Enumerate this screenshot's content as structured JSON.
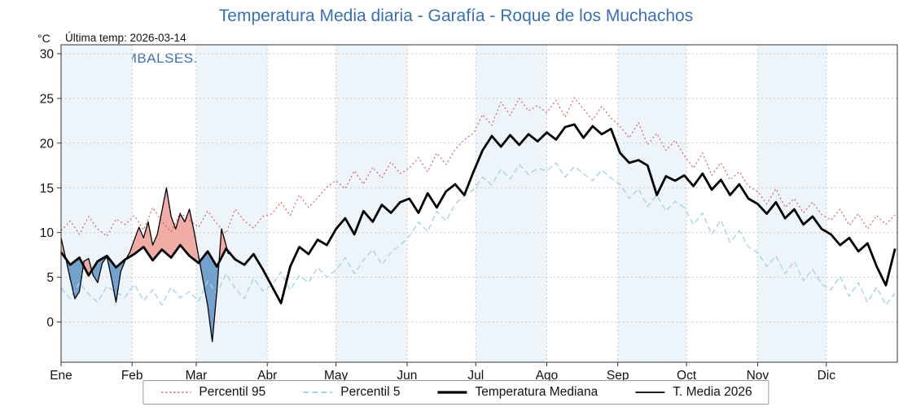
{
  "chart_data": {
    "type": "line",
    "title": "Temperatura Media diaria - Garafía - Roque de los Muchachos",
    "watermark": "WWW.EMBALSES.NET",
    "annotation": "Última temp: 2026-03-14",
    "ylabel": "°C",
    "legend": [
      "Percentil 95",
      "Percentil 5",
      "Temperatura Mediana",
      "T. Media 2026"
    ],
    "y_axis": {
      "ticks": [
        0,
        5,
        10,
        15,
        20,
        25,
        30
      ],
      "plot_min": -4.5,
      "plot_max": 31
    },
    "x_axis": {
      "month_labels": [
        "Ene",
        "Feb",
        "Mar",
        "Abr",
        "May",
        "Jun",
        "Jul",
        "Ago",
        "Sep",
        "Oct",
        "Nov",
        "Dic"
      ],
      "month_start_days": [
        0,
        31,
        59,
        90,
        120,
        151,
        181,
        212,
        243,
        273,
        304,
        334
      ],
      "days_in_year": 365
    },
    "colors": {
      "title": "#3a6fb5",
      "p95": "#d9534f",
      "p5": "#a6d4e6",
      "median": "#000000",
      "t2026": "#000000",
      "fill_above": "#ef9d96",
      "fill_below": "#5e93c5",
      "month_band": "#edf4fa",
      "grid": "#c8c8c8",
      "axis": "#333333"
    },
    "series": [
      {
        "key": "p95",
        "name": "Percentil 95",
        "color": "#d9534f",
        "line": "dotted",
        "x_start": 0,
        "x_step": 4,
        "values": [
          10.2,
          11.3,
          9.8,
          11.8,
          10.4,
          9.6,
          11.5,
          10.9,
          11.9,
          10.3,
          12.8,
          11.2,
          10.1,
          12.2,
          11.4,
          10.6,
          12.4,
          11.0,
          9.9,
          12.6,
          11.3,
          10.5,
          11.8,
          12.1,
          13.4,
          11.9,
          14.2,
          12.8,
          13.9,
          15.1,
          15.8,
          14.9,
          16.9,
          15.4,
          17.3,
          16.1,
          17.9,
          16.6,
          17.2,
          18.4,
          16.8,
          18.9,
          17.6,
          19.3,
          20.4,
          21.1,
          23.2,
          22.0,
          24.6,
          23.1,
          25.0,
          23.6,
          24.2,
          23.4,
          24.8,
          22.9,
          25.1,
          23.8,
          22.6,
          24.1,
          22.8,
          21.9,
          20.6,
          22.3,
          19.8,
          21.1,
          19.2,
          20.3,
          18.6,
          17.2,
          18.9,
          16.4,
          17.8,
          15.9,
          16.8,
          15.2,
          14.6,
          13.2,
          14.9,
          12.8,
          13.8,
          12.2,
          13.4,
          12.0,
          11.4,
          12.6,
          10.8,
          12.1,
          10.4,
          11.9,
          10.9,
          12.0
        ]
      },
      {
        "key": "p5",
        "name": "Percentil 5",
        "color": "#a6d4e6",
        "line": "dashed",
        "x_start": 0,
        "x_step": 4,
        "values": [
          3.8,
          2.6,
          4.4,
          3.1,
          2.2,
          4.0,
          3.3,
          2.8,
          4.2,
          2.4,
          3.6,
          1.9,
          3.9,
          2.7,
          3.4,
          2.3,
          4.6,
          3.2,
          5.4,
          3.8,
          2.6,
          4.9,
          3.5,
          4.1,
          5.6,
          3.6,
          5.2,
          4.4,
          6.1,
          5.0,
          5.8,
          7.2,
          5.4,
          6.9,
          8.1,
          6.4,
          7.8,
          8.6,
          9.6,
          11.2,
          10.1,
          12.4,
          11.3,
          13.2,
          14.1,
          14.8,
          16.2,
          15.3,
          17.1,
          16.0,
          17.6,
          16.5,
          17.2,
          16.9,
          17.8,
          16.2,
          17.4,
          16.6,
          15.8,
          17.0,
          16.1,
          15.4,
          13.8,
          14.9,
          12.9,
          14.2,
          12.4,
          13.5,
          12.8,
          10.9,
          12.2,
          9.8,
          11.4,
          8.9,
          10.2,
          8.4,
          7.8,
          6.2,
          7.4,
          5.4,
          6.8,
          4.6,
          5.9,
          4.2,
          3.6,
          5.1,
          2.9,
          4.4,
          2.2,
          3.9,
          1.9,
          3.2
        ]
      },
      {
        "key": "median",
        "name": "Temperatura Mediana",
        "color": "#000000",
        "line": "thick",
        "x_start": 0,
        "x_step": 4,
        "values": [
          7.8,
          6.4,
          7.2,
          5.2,
          6.8,
          7.4,
          6.1,
          7.0,
          7.6,
          8.4,
          6.9,
          8.1,
          7.2,
          8.6,
          7.4,
          6.6,
          7.9,
          6.2,
          8.2,
          7.0,
          6.4,
          7.6,
          5.9,
          4.0,
          2.1,
          6.2,
          8.4,
          7.6,
          9.2,
          8.6,
          10.4,
          11.6,
          9.8,
          12.4,
          11.2,
          13.1,
          12.2,
          13.4,
          13.8,
          12.2,
          14.4,
          12.8,
          14.6,
          15.4,
          14.2,
          16.8,
          19.2,
          20.8,
          19.6,
          20.9,
          19.8,
          21.0,
          20.2,
          21.2,
          20.4,
          21.8,
          22.1,
          20.6,
          21.9,
          21.0,
          21.6,
          18.9,
          17.8,
          18.1,
          17.5,
          14.2,
          16.3,
          15.8,
          16.4,
          15.2,
          16.6,
          14.8,
          15.9,
          14.2,
          15.4,
          13.8,
          13.2,
          12.1,
          13.4,
          11.6,
          12.6,
          10.9,
          11.8,
          10.4,
          9.8,
          8.6,
          9.4,
          7.9,
          8.8,
          6.2,
          4.1,
          8.2
        ]
      },
      {
        "key": "t2026",
        "name": "T. Media 2026",
        "color": "#000000",
        "line": "thin",
        "points": [
          [
            0,
            9.4
          ],
          [
            2,
            7.2
          ],
          [
            4,
            4.8
          ],
          [
            6,
            2.6
          ],
          [
            8,
            3.4
          ],
          [
            10,
            6.8
          ],
          [
            12,
            7.1
          ],
          [
            14,
            5.2
          ],
          [
            16,
            4.4
          ],
          [
            18,
            6.6
          ],
          [
            20,
            7.3
          ],
          [
            22,
            4.9
          ],
          [
            24,
            2.2
          ],
          [
            26,
            5.6
          ],
          [
            28,
            6.9
          ],
          [
            30,
            7.8
          ],
          [
            32,
            9.2
          ],
          [
            34,
            10.6
          ],
          [
            36,
            9.4
          ],
          [
            38,
            11.2
          ],
          [
            40,
            8.6
          ],
          [
            42,
            9.8
          ],
          [
            44,
            12.4
          ],
          [
            46,
            15.0
          ],
          [
            48,
            11.8
          ],
          [
            50,
            10.4
          ],
          [
            52,
            12.1
          ],
          [
            54,
            11.2
          ],
          [
            56,
            12.6
          ],
          [
            58,
            10.2
          ],
          [
            60,
            7.4
          ],
          [
            62,
            4.6
          ],
          [
            64,
            1.8
          ],
          [
            66,
            -2.2
          ],
          [
            68,
            3.4
          ],
          [
            70,
            10.4
          ],
          [
            72,
            8.6
          ],
          [
            73,
            7.6
          ]
        ]
      }
    ]
  }
}
